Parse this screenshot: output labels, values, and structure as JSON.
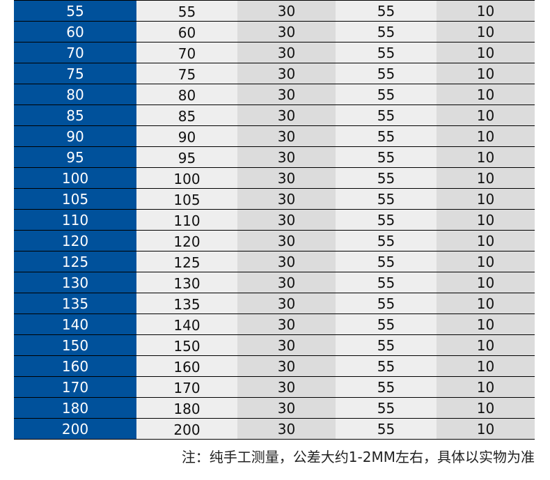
{
  "colors": {
    "first_column": "#00519b",
    "light_cell": "#eeeeee",
    "dark_cell": "#dcdcdc"
  },
  "rows": [
    [
      "55",
      "55",
      "30",
      "55",
      "10"
    ],
    [
      "60",
      "60",
      "30",
      "55",
      "10"
    ],
    [
      "70",
      "70",
      "30",
      "55",
      "10"
    ],
    [
      "75",
      "75",
      "30",
      "55",
      "10"
    ],
    [
      "80",
      "80",
      "30",
      "55",
      "10"
    ],
    [
      "85",
      "85",
      "30",
      "55",
      "10"
    ],
    [
      "90",
      "90",
      "30",
      "55",
      "10"
    ],
    [
      "95",
      "95",
      "30",
      "55",
      "10"
    ],
    [
      "100",
      "100",
      "30",
      "55",
      "10"
    ],
    [
      "105",
      "105",
      "30",
      "55",
      "10"
    ],
    [
      "110",
      "110",
      "30",
      "55",
      "10"
    ],
    [
      "120",
      "120",
      "30",
      "55",
      "10"
    ],
    [
      "125",
      "125",
      "30",
      "55",
      "10"
    ],
    [
      "130",
      "130",
      "30",
      "55",
      "10"
    ],
    [
      "135",
      "135",
      "30",
      "55",
      "10"
    ],
    [
      "140",
      "140",
      "30",
      "55",
      "10"
    ],
    [
      "150",
      "150",
      "30",
      "55",
      "10"
    ],
    [
      "160",
      "160",
      "30",
      "55",
      "10"
    ],
    [
      "170",
      "170",
      "30",
      "55",
      "10"
    ],
    [
      "180",
      "180",
      "30",
      "55",
      "10"
    ],
    [
      "200",
      "200",
      "30",
      "55",
      "10"
    ]
  ],
  "note": "注：纯手工测量，公差大约1-2MM左右，具体以实物为准"
}
